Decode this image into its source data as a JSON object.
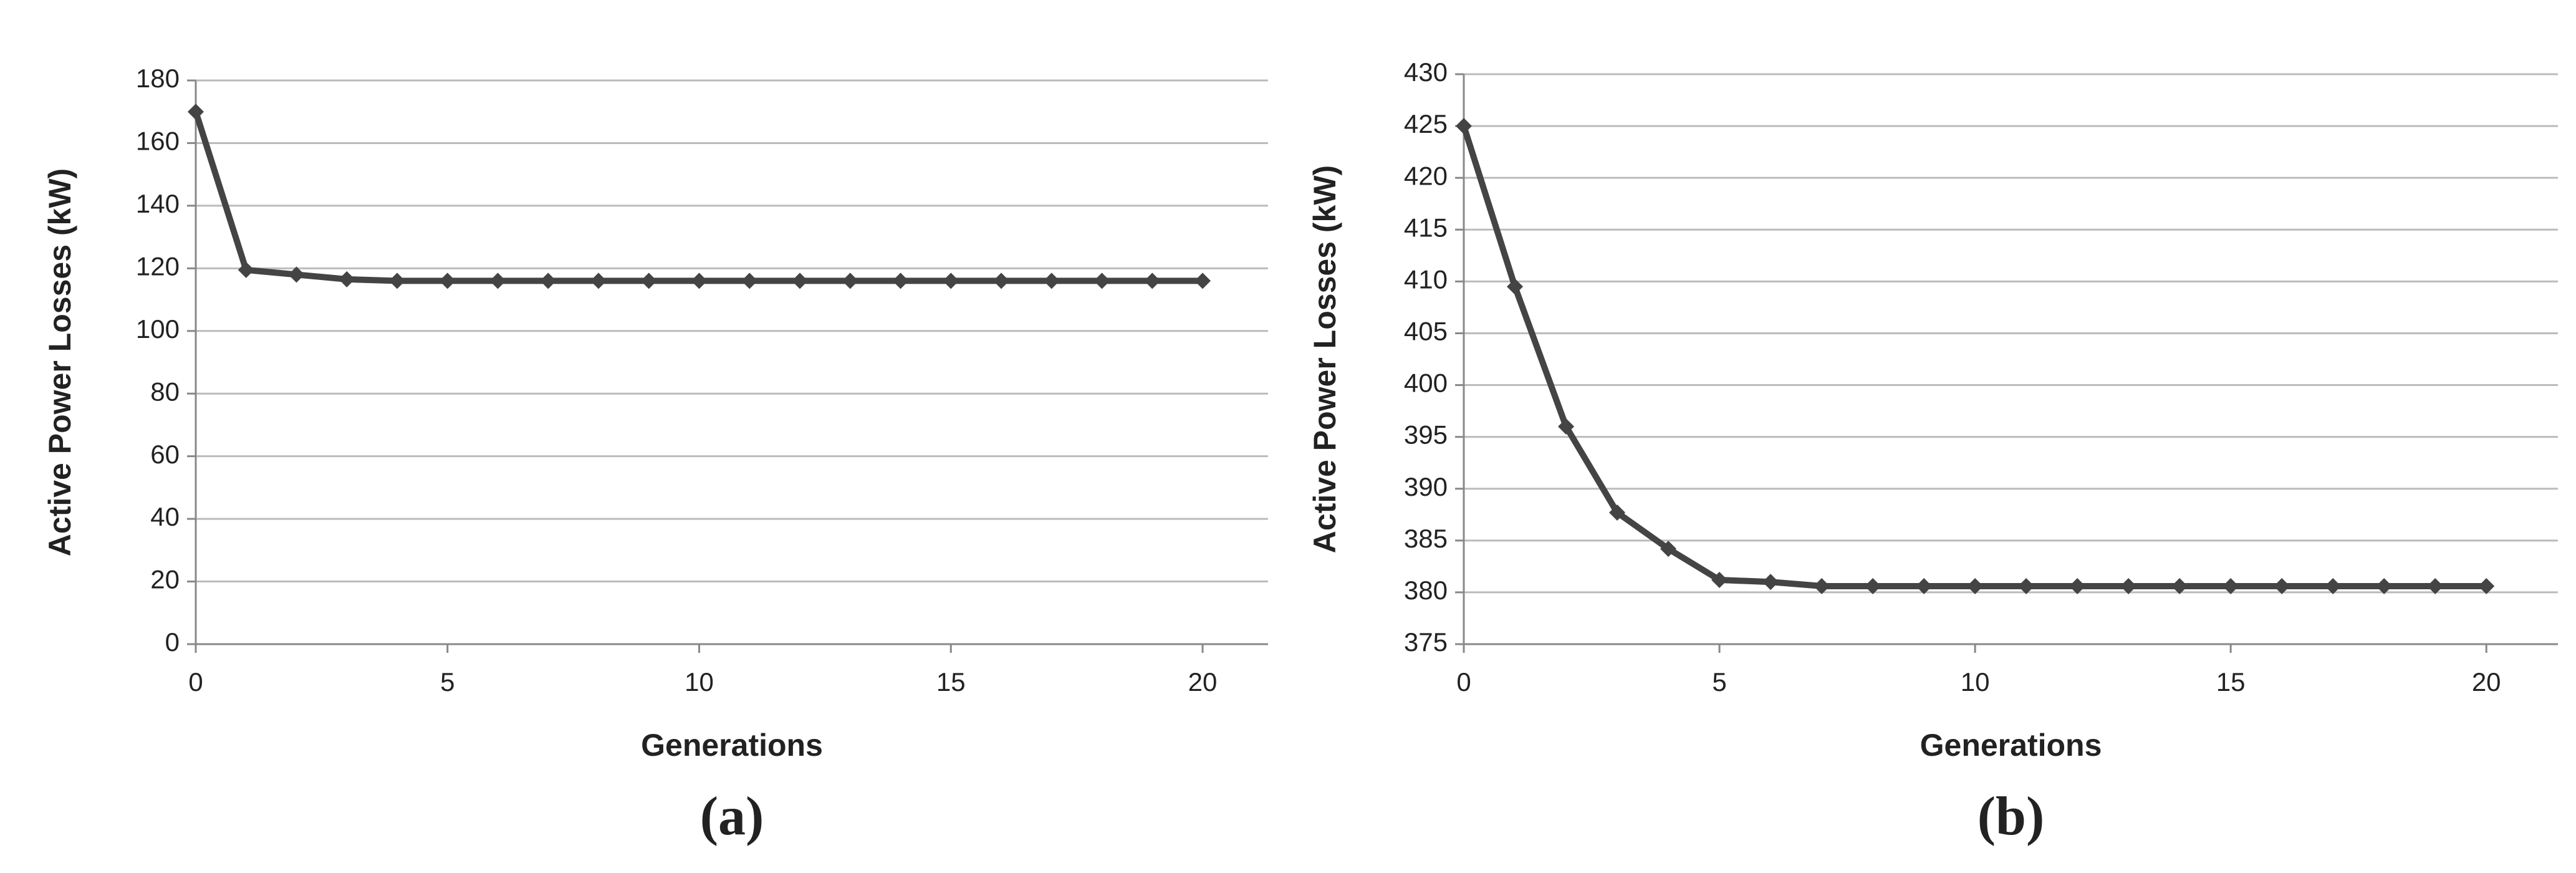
{
  "chart_data": [
    {
      "type": "line",
      "caption": "(a)",
      "x_label": "Generations",
      "y_label": "Active Power Losses (kW)",
      "x": [
        0,
        1,
        2,
        3,
        4,
        5,
        6,
        7,
        8,
        9,
        10,
        11,
        12,
        13,
        14,
        15,
        16,
        17,
        18,
        19,
        20
      ],
      "values": [
        170,
        119.5,
        118,
        116.5,
        116,
        116,
        116,
        116,
        116,
        116,
        116,
        116,
        116,
        116,
        116,
        116,
        116,
        116,
        116,
        116,
        116
      ],
      "color": "#444444",
      "xlim": [
        0,
        21.3
      ],
      "xticks": [
        0,
        5,
        10,
        15,
        20
      ],
      "ylim": [
        0,
        180
      ],
      "yticks": [
        0,
        20,
        40,
        60,
        80,
        100,
        120,
        140,
        160,
        180
      ],
      "grid": true
    },
    {
      "type": "line",
      "caption": "(b)",
      "x_label": "Generations",
      "y_label": "Active Power Losses (kW)",
      "x": [
        0,
        1,
        2,
        3,
        4,
        5,
        6,
        7,
        8,
        9,
        10,
        11,
        12,
        13,
        14,
        15,
        16,
        17,
        18,
        19,
        20
      ],
      "values": [
        425,
        409.5,
        396,
        387.7,
        384.2,
        381.2,
        381,
        380.6,
        380.6,
        380.6,
        380.6,
        380.6,
        380.6,
        380.6,
        380.6,
        380.6,
        380.6,
        380.6,
        380.6,
        380.6,
        380.6
      ],
      "color": "#444444",
      "xlim": [
        0,
        21.4
      ],
      "xticks": [
        0,
        5,
        10,
        15,
        20
      ],
      "ylim": [
        375,
        430
      ],
      "yticks": [
        375,
        380,
        385,
        390,
        395,
        400,
        405,
        410,
        415,
        420,
        425,
        430
      ],
      "grid": true
    }
  ]
}
